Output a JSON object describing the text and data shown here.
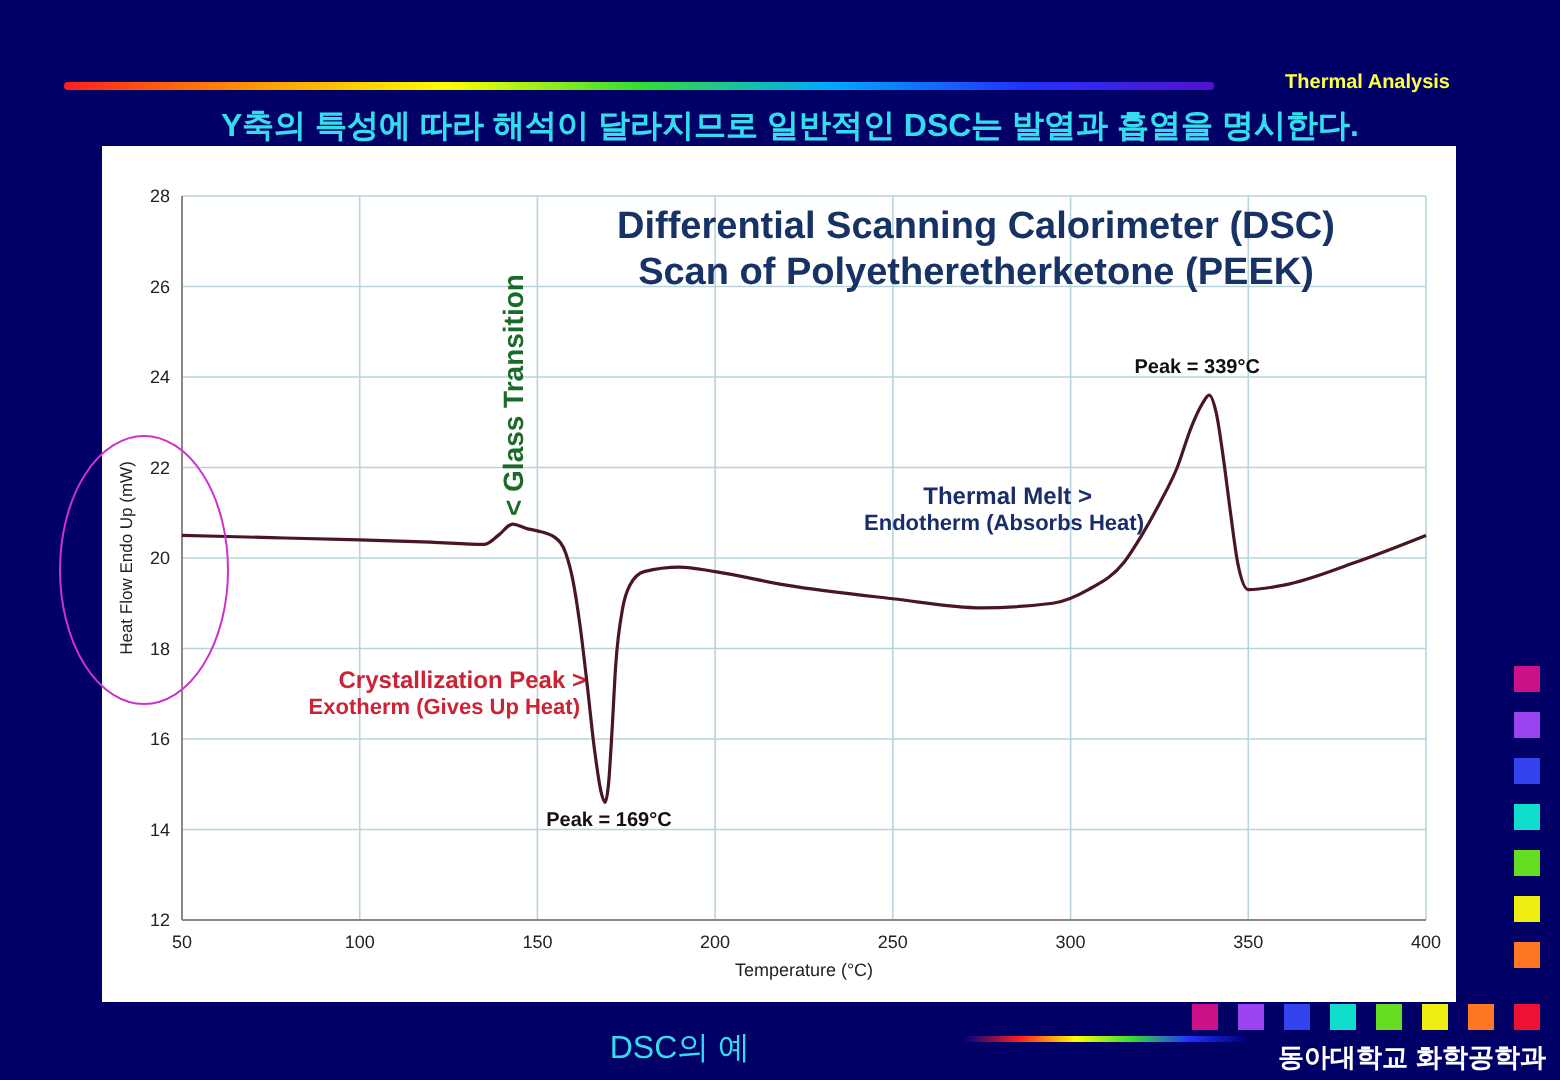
{
  "chart_data": {
    "type": "line",
    "title": "Differential Scanning Calorimeter (DSC)\nScan of Polyetheretherketone (PEEK)",
    "xlabel": "Temperature (°C)",
    "ylabel": "Heat Flow Endo Up (mW)",
    "x": [
      50,
      75,
      100,
      120,
      135,
      139,
      143,
      147,
      150,
      155,
      158,
      160,
      162,
      164,
      166,
      168,
      169,
      170,
      171,
      172,
      174,
      176,
      180,
      190,
      200,
      220,
      250,
      275,
      295,
      305,
      315,
      320,
      325,
      330,
      334,
      337,
      339,
      341,
      343,
      345,
      347,
      350,
      360,
      380,
      400
    ],
    "series": [
      {
        "color": "#4a1525",
        "values": [
          20.5,
          20.45,
          20.4,
          20.35,
          20.3,
          20.5,
          20.75,
          20.65,
          20.6,
          20.45,
          20.1,
          19.5,
          18.5,
          17.2,
          15.8,
          14.8,
          14.6,
          15.0,
          16.2,
          17.6,
          18.9,
          19.4,
          19.7,
          19.8,
          19.7,
          19.4,
          19.1,
          18.9,
          19.0,
          19.3,
          19.9,
          20.5,
          21.2,
          22.0,
          22.9,
          23.4,
          23.6,
          23.2,
          22.2,
          21.0,
          19.9,
          19.3,
          19.4,
          19.9,
          20.5
        ]
      }
    ],
    "xlim": [
      50,
      400
    ],
    "ylim": [
      12,
      28
    ],
    "xticks": [
      50,
      100,
      150,
      200,
      250,
      300,
      350,
      400
    ],
    "yticks": [
      12,
      14,
      16,
      18,
      20,
      22,
      24,
      26,
      28
    ],
    "grid": true,
    "line_style": "solid",
    "marker": "none",
    "annotations": [
      "Y축의 특성에 따라 해석이 달라지므로 일반적인 DSC는 발열과 흡열을 명시한다.",
      "Thermal Analysis",
      "DSC의 예",
      "동아대학교 화학공학과",
      "Crystallization Peak >",
      "Exotherm (Gives Up Heat)",
      "Thermal Melt >",
      "Endotherm (Absorbs Heat)",
      {
        "text": "Peak = 169°C",
        "x": 169,
        "y": 14.6
      },
      {
        "text": "Peak = 339°C",
        "x": 339,
        "y": 23.6
      },
      {
        "text": "< Glass Transition",
        "x": 143,
        "y": 20.75
      }
    ]
  }
}
